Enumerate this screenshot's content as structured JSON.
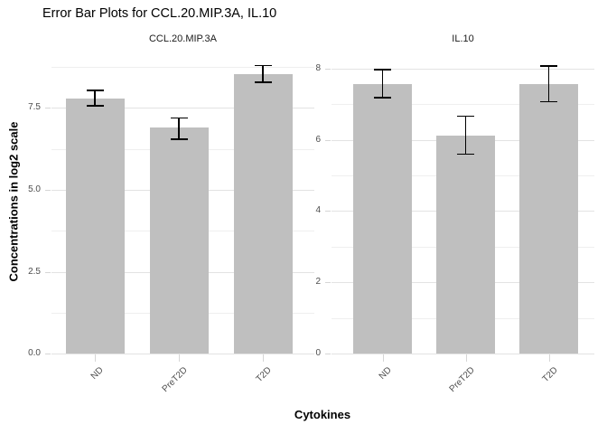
{
  "chart_data": {
    "type": "bar",
    "title": "Error Bar Plots for CCL.20.MIP.3A, IL.10",
    "xlabel": "Cytokines",
    "ylabel": "Concentrations in log2 scale",
    "categories": [
      "ND",
      "PreT2D",
      "T2D"
    ],
    "legend": false,
    "grid": true,
    "panels": [
      {
        "facet_label": "CCL.20.MIP.3A",
        "series": [
          {
            "category": "ND",
            "mean": 7.8,
            "error_low": 7.57,
            "error_high": 8.03
          },
          {
            "category": "PreT2D",
            "mean": 6.9,
            "error_low": 6.55,
            "error_high": 7.19
          },
          {
            "category": "T2D",
            "mean": 8.53,
            "error_low": 8.28,
            "error_high": 8.79
          }
        ],
        "y_ticks": [
          {
            "label": "0.0",
            "value": 0
          },
          {
            "label": "2.5",
            "value": 2.5
          },
          {
            "label": "5.0",
            "value": 5
          },
          {
            "label": "7.5",
            "value": 7.5
          }
        ],
        "ylim": [
          0,
          9.25
        ]
      },
      {
        "facet_label": "IL.10",
        "series": [
          {
            "category": "ND",
            "mean": 7.56,
            "error_low": 7.18,
            "error_high": 7.97
          },
          {
            "category": "PreT2D",
            "mean": 6.12,
            "error_low": 5.6,
            "error_high": 6.66
          },
          {
            "category": "T2D",
            "mean": 7.57,
            "error_low": 7.07,
            "error_high": 8.07
          }
        ],
        "y_ticks": [
          {
            "label": "0",
            "value": 0
          },
          {
            "label": "2",
            "value": 2
          },
          {
            "label": "4",
            "value": 4
          },
          {
            "label": "6",
            "value": 6
          },
          {
            "label": "8",
            "value": 8
          }
        ],
        "ylim": [
          0,
          8.5
        ]
      }
    ],
    "colors": {
      "bar_fill": "#bfbfbf",
      "error_bar": "#000000",
      "grid_major": "#e3e3e3",
      "grid_minor": "#efefef",
      "axis_tick": "#d6d6d6",
      "axis_text": "#4d4d4d",
      "strip_text": "#1a1a1a",
      "title_text": "#000000"
    }
  }
}
